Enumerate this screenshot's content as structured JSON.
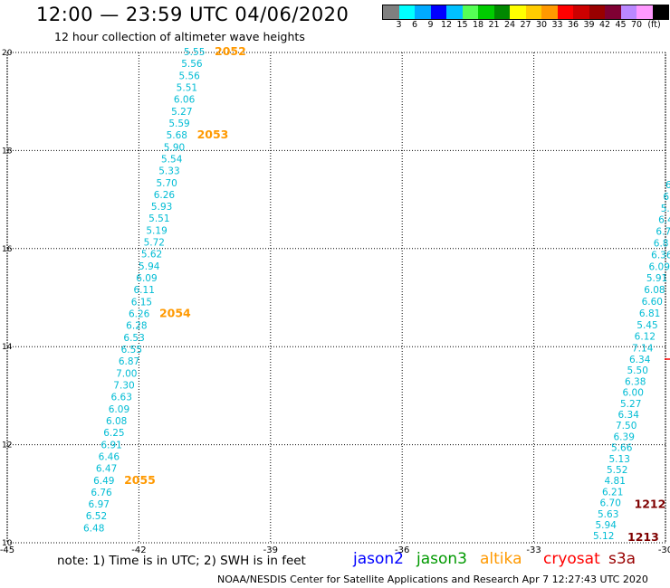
{
  "header": {
    "title": "12:00 — 23:59 UTC 04/06/2020",
    "subtitle": "12 hour collection of altimeter wave heights"
  },
  "colorbar": {
    "unit": "(ft)",
    "colors": [
      "#7f7f7f",
      "#00ffff",
      "#00aaff",
      "#0000ff",
      "#00c0ff",
      "#55ff55",
      "#00cc00",
      "#008800",
      "#ffff00",
      "#ffcc00",
      "#ff9900",
      "#ff0000",
      "#cc0000",
      "#990000",
      "#7f0033",
      "#bb88ff",
      "#ff99ff",
      "#000000"
    ],
    "labels": [
      "3",
      "6",
      "9",
      "12",
      "15",
      "18",
      "21",
      "24",
      "27",
      "30",
      "33",
      "36",
      "39",
      "42",
      "45",
      "70"
    ]
  },
  "map": {
    "lon_ticks": [
      "-45",
      "-42",
      "-39",
      "-36",
      "-33",
      "-30"
    ],
    "lat_ticks": [
      "20",
      "18",
      "16",
      "14",
      "12",
      "10"
    ],
    "lon_range": [
      -45,
      -30
    ],
    "lat_range": [
      10,
      20
    ],
    "grid": "dotted"
  },
  "track_left": {
    "color": "#00bcd4",
    "values": [
      "5.55",
      "5.56",
      "5.56",
      "5.51",
      "6.06",
      "5.27",
      "5.59",
      "5.68",
      "5.90",
      "5.54",
      "5.33",
      "5.70",
      "6.26",
      "5.93",
      "5.51",
      "5.19",
      "5.72",
      "5.62",
      "5.94",
      "6.09",
      "6.11",
      "6.15",
      "6.26",
      "6.28",
      "6.53",
      "6.55",
      "6.87",
      "7.00",
      "7.30",
      "6.63",
      "6.09",
      "6.08",
      "6.25",
      "6.91",
      "6.46",
      "6.47",
      "6.49",
      "6.76",
      "6.97",
      "6.52",
      "6.48"
    ],
    "times": [
      {
        "label": "2052",
        "index": 0,
        "color": "#ff9900"
      },
      {
        "label": "2053",
        "index": 7,
        "color": "#ff9900"
      },
      {
        "label": "2054",
        "index": 22,
        "color": "#ff9900"
      },
      {
        "label": "2055",
        "index": 36,
        "color": "#ff9900"
      }
    ]
  },
  "track_right_partial": {
    "color": "#00bcd4",
    "values": [
      "6",
      "6",
      "5.",
      "6.4",
      "6.7",
      "6.8",
      "6.36",
      "6.09",
      "5.91",
      "6.08",
      "6.60",
      "6.81",
      "5.45",
      "6.12",
      "7.14"
    ]
  },
  "track_right": {
    "color": "#00bcd4",
    "values": [
      "6.34",
      "5.50",
      "6.38",
      "6.00",
      "5.27",
      "6.34",
      "7.50",
      "6.39",
      "5.66",
      "5.13",
      "5.52",
      "4.81",
      "6.21",
      "6.70",
      "5.63",
      "5.94",
      "5.12"
    ],
    "times": [
      {
        "label": "1212",
        "index": 13,
        "color": "#7f0000"
      },
      {
        "label": "1213",
        "index": 16,
        "color": "#7f0000"
      }
    ]
  },
  "note": "note:  1) Time is in UTC;  2) SWH is in feet",
  "satellites": [
    {
      "name": "jason2",
      "color": "#0000ff"
    },
    {
      "name": "jason3",
      "color": "#009900"
    },
    {
      "name": "altika",
      "color": "#ff9900"
    },
    {
      "name": "cryosat",
      "color": "#ff0000"
    },
    {
      "name": "s3a",
      "color": "#990000"
    }
  ],
  "footer": "NOAA/NESDIS Center for Satellite Applications and Research    Apr  7 12:27:43 UTC 2020"
}
